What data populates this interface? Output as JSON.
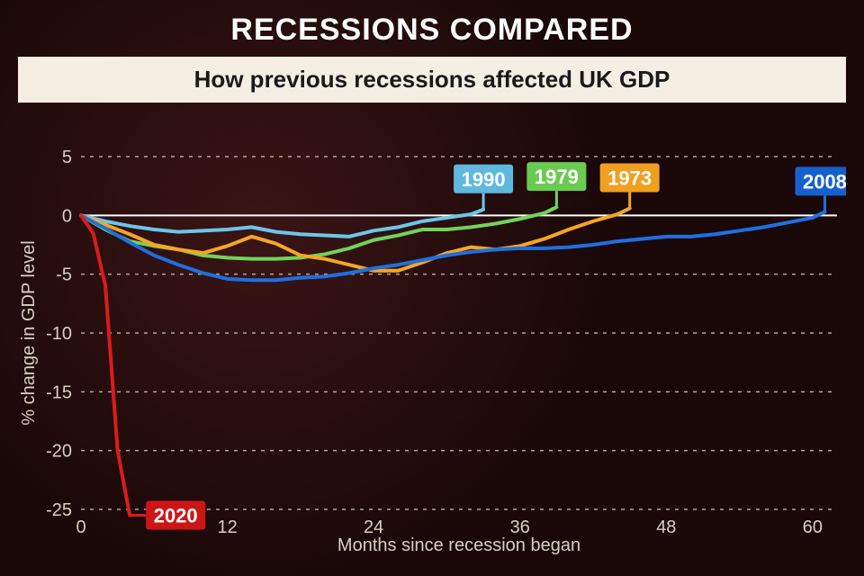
{
  "main_title": "RECESSIONS COMPARED",
  "subtitle": "How previous recessions affected UK GDP",
  "x_axis_label": "Months since recession began",
  "y_axis_label": "% change in GDP level",
  "background_color": "#1a0808",
  "subtitle_band_color": "#f5eee3",
  "text_color": "#ffffff",
  "axis_text_color": "#d8cfc2",
  "grid_color": "#b0a896",
  "zero_line_color": "#ffffff",
  "chart": {
    "type": "line",
    "ylim": [
      -25,
      5
    ],
    "ytick_step": 5,
    "xlim": [
      0,
      62
    ],
    "xtick_step": 12,
    "line_width": 4,
    "font_family": "Arial",
    "tick_fontsize": 20,
    "axis_label_fontsize": 20
  },
  "series": [
    {
      "name": "1990",
      "color": "#6ec5e8",
      "label_box_color": "#5fb8dd",
      "data": [
        [
          0,
          0
        ],
        [
          2,
          -0.5
        ],
        [
          4,
          -0.9
        ],
        [
          6,
          -1.2
        ],
        [
          8,
          -1.4
        ],
        [
          10,
          -1.3
        ],
        [
          12,
          -1.2
        ],
        [
          14,
          -1.0
        ],
        [
          16,
          -1.4
        ],
        [
          18,
          -1.6
        ],
        [
          20,
          -1.7
        ],
        [
          22,
          -1.8
        ],
        [
          24,
          -1.3
        ],
        [
          26,
          -1.0
        ],
        [
          28,
          -0.5
        ],
        [
          30,
          -0.2
        ],
        [
          32,
          0.1
        ],
        [
          33,
          0.5
        ]
      ],
      "label_at": [
        33,
        0.5
      ]
    },
    {
      "name": "1979",
      "color": "#72d35a",
      "label_box_color": "#6acb52",
      "data": [
        [
          0,
          0
        ],
        [
          2,
          -1.2
        ],
        [
          4,
          -2.2
        ],
        [
          6,
          -2.6
        ],
        [
          8,
          -2.9
        ],
        [
          10,
          -3.4
        ],
        [
          12,
          -3.6
        ],
        [
          14,
          -3.7
        ],
        [
          16,
          -3.7
        ],
        [
          18,
          -3.6
        ],
        [
          20,
          -3.3
        ],
        [
          22,
          -2.8
        ],
        [
          24,
          -2.1
        ],
        [
          26,
          -1.7
        ],
        [
          28,
          -1.2
        ],
        [
          30,
          -1.2
        ],
        [
          32,
          -1.0
        ],
        [
          34,
          -0.7
        ],
        [
          36,
          -0.3
        ],
        [
          38,
          0.2
        ],
        [
          39,
          0.7
        ]
      ],
      "label_at": [
        39,
        0.7
      ]
    },
    {
      "name": "1973",
      "color": "#f5a623",
      "label_box_color": "#f0a020",
      "data": [
        [
          0,
          0
        ],
        [
          2,
          -0.8
        ],
        [
          4,
          -1.6
        ],
        [
          6,
          -2.5
        ],
        [
          8,
          -2.9
        ],
        [
          10,
          -3.2
        ],
        [
          12,
          -2.6
        ],
        [
          14,
          -1.8
        ],
        [
          16,
          -2.4
        ],
        [
          18,
          -3.4
        ],
        [
          20,
          -3.7
        ],
        [
          22,
          -4.2
        ],
        [
          24,
          -4.7
        ],
        [
          26,
          -4.7
        ],
        [
          28,
          -4.0
        ],
        [
          30,
          -3.2
        ],
        [
          32,
          -2.7
        ],
        [
          34,
          -2.9
        ],
        [
          36,
          -2.6
        ],
        [
          38,
          -2.0
        ],
        [
          40,
          -1.2
        ],
        [
          42,
          -0.5
        ],
        [
          44,
          0.1
        ],
        [
          45,
          0.6
        ]
      ],
      "label_at": [
        45,
        0.6
      ]
    },
    {
      "name": "2008",
      "color": "#1f6fe0",
      "label_box_color": "#1760cc",
      "data": [
        [
          0,
          0
        ],
        [
          2,
          -1.1
        ],
        [
          4,
          -2.3
        ],
        [
          6,
          -3.4
        ],
        [
          8,
          -4.2
        ],
        [
          10,
          -4.9
        ],
        [
          12,
          -5.4
        ],
        [
          14,
          -5.5
        ],
        [
          16,
          -5.5
        ],
        [
          18,
          -5.3
        ],
        [
          20,
          -5.2
        ],
        [
          22,
          -4.9
        ],
        [
          24,
          -4.5
        ],
        [
          26,
          -4.2
        ],
        [
          28,
          -3.8
        ],
        [
          30,
          -3.4
        ],
        [
          32,
          -3.1
        ],
        [
          34,
          -2.9
        ],
        [
          36,
          -2.8
        ],
        [
          38,
          -2.8
        ],
        [
          40,
          -2.7
        ],
        [
          42,
          -2.5
        ],
        [
          44,
          -2.2
        ],
        [
          46,
          -2.0
        ],
        [
          48,
          -1.8
        ],
        [
          50,
          -1.8
        ],
        [
          52,
          -1.6
        ],
        [
          54,
          -1.3
        ],
        [
          56,
          -1.0
        ],
        [
          58,
          -0.6
        ],
        [
          60,
          -0.2
        ],
        [
          61,
          0.3
        ]
      ],
      "label_at": [
        61,
        0.3
      ]
    },
    {
      "name": "2020",
      "color": "#d91c1c",
      "label_box_color": "#cc1515",
      "data": [
        [
          0,
          0
        ],
        [
          1,
          -1.5
        ],
        [
          2,
          -6
        ],
        [
          3,
          -20
        ],
        [
          4,
          -25.5
        ]
      ],
      "label_at": [
        4,
        -25.5
      ],
      "label_side": "right"
    }
  ]
}
